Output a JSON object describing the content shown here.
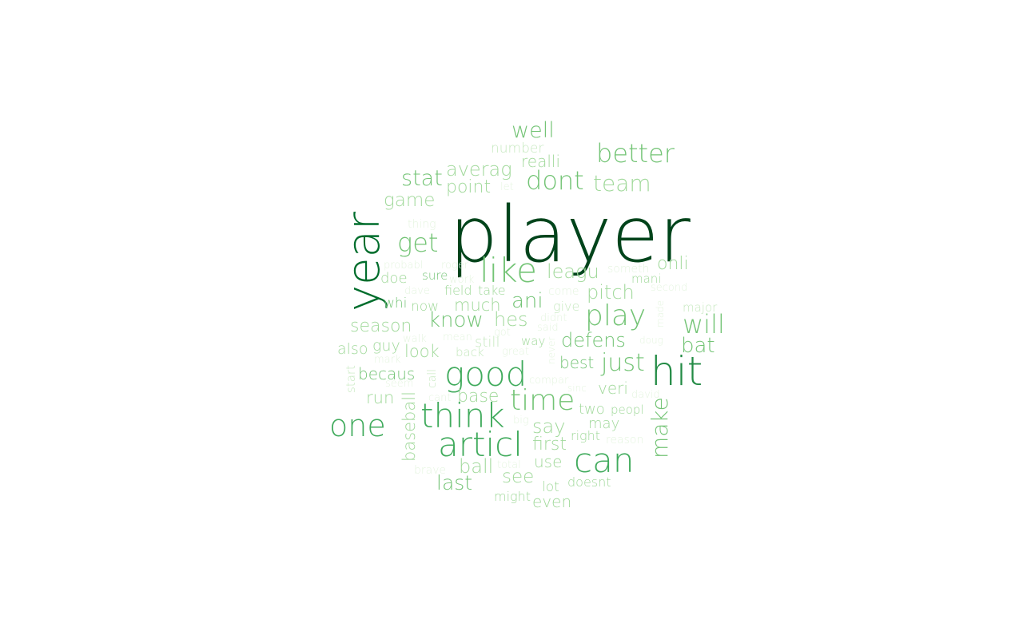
{
  "words": [
    {
      "text": "player",
      "weight": 1.0,
      "color": "#00441b"
    },
    {
      "text": "year",
      "weight": 0.78,
      "color": "#006d2c"
    },
    {
      "text": "hit",
      "weight": 0.66,
      "color": "#238b45"
    },
    {
      "text": "articl",
      "weight": 0.56,
      "color": "#41ab5d"
    },
    {
      "text": "think",
      "weight": 0.55,
      "color": "#41ab5d"
    },
    {
      "text": "good",
      "weight": 0.55,
      "color": "#41ab5d"
    },
    {
      "text": "like",
      "weight": 0.52,
      "color": "#74c476"
    },
    {
      "text": "can",
      "weight": 0.52,
      "color": "#41ab5d"
    },
    {
      "text": "one",
      "weight": 0.48,
      "color": "#41ab5d"
    },
    {
      "text": "time",
      "weight": 0.46,
      "color": "#74c476"
    },
    {
      "text": "play",
      "weight": 0.46,
      "color": "#74c476"
    },
    {
      "text": "dont",
      "weight": 0.42,
      "color": "#74c476"
    },
    {
      "text": "better",
      "weight": 0.4,
      "color": "#74c476"
    },
    {
      "text": "get",
      "weight": 0.4,
      "color": "#74c476"
    },
    {
      "text": "will",
      "weight": 0.4,
      "color": "#74c476"
    },
    {
      "text": "just",
      "weight": 0.38,
      "color": "#74c476"
    },
    {
      "text": "make",
      "weight": 0.36,
      "color": "#74c476"
    },
    {
      "text": "team",
      "weight": 0.36,
      "color": "#a1d99b"
    },
    {
      "text": "well",
      "weight": 0.34,
      "color": "#74c476"
    },
    {
      "text": "stat",
      "weight": 0.34,
      "color": "#74c476"
    },
    {
      "text": "know",
      "weight": 0.32,
      "color": "#74c476"
    },
    {
      "text": "ani",
      "weight": 0.32,
      "color": "#74c476"
    },
    {
      "text": "bat",
      "weight": 0.32,
      "color": "#74c476"
    },
    {
      "text": "last",
      "weight": 0.31,
      "color": "#74c476"
    },
    {
      "text": "ball",
      "weight": 0.31,
      "color": "#a1d99b"
    },
    {
      "text": "say",
      "weight": 0.3,
      "color": "#a1d99b"
    },
    {
      "text": "hes",
      "weight": 0.3,
      "color": "#a1d99b"
    },
    {
      "text": "defens",
      "weight": 0.3,
      "color": "#74c476"
    },
    {
      "text": "pitch",
      "weight": 0.3,
      "color": "#a1d99b"
    },
    {
      "text": "leagu",
      "weight": 0.3,
      "color": "#a1d99b"
    },
    {
      "text": "averag",
      "weight": 0.3,
      "color": "#a1d99b"
    },
    {
      "text": "game",
      "weight": 0.29,
      "color": "#a1d99b"
    },
    {
      "text": "see",
      "weight": 0.29,
      "color": "#a1d99b"
    },
    {
      "text": "first",
      "weight": 0.28,
      "color": "#a1d99b"
    },
    {
      "text": "season",
      "weight": 0.28,
      "color": "#a1d99b"
    },
    {
      "text": "point",
      "weight": 0.28,
      "color": "#a1d99b"
    },
    {
      "text": "onli",
      "weight": 0.28,
      "color": "#a1d99b"
    },
    {
      "text": "base",
      "weight": 0.28,
      "color": "#a1d99b"
    },
    {
      "text": "much",
      "weight": 0.27,
      "color": "#a1d99b"
    },
    {
      "text": "baseball",
      "weight": 0.27,
      "color": "#a1d99b"
    },
    {
      "text": "look",
      "weight": 0.27,
      "color": "#a1d99b"
    },
    {
      "text": "run",
      "weight": 0.27,
      "color": "#a1d99b"
    },
    {
      "text": "becaus",
      "weight": 0.27,
      "color": "#74c476"
    },
    {
      "text": "veri",
      "weight": 0.26,
      "color": "#a1d99b"
    },
    {
      "text": "best",
      "weight": 0.26,
      "color": "#74c476"
    },
    {
      "text": "even",
      "weight": 0.25,
      "color": "#a1d99b"
    },
    {
      "text": "use",
      "weight": 0.25,
      "color": "#a1d99b"
    },
    {
      "text": "realli",
      "weight": 0.25,
      "color": "#a1d99b"
    },
    {
      "text": "also",
      "weight": 0.24,
      "color": "#a1d99b"
    },
    {
      "text": "guy",
      "weight": 0.24,
      "color": "#a1d99b"
    },
    {
      "text": "doe",
      "weight": 0.24,
      "color": "#a1d99b"
    },
    {
      "text": "two",
      "weight": 0.23,
      "color": "#a1d99b"
    },
    {
      "text": "may",
      "weight": 0.23,
      "color": "#a1d99b"
    },
    {
      "text": "still",
      "weight": 0.23,
      "color": "#c7e9c0"
    },
    {
      "text": "now",
      "weight": 0.23,
      "color": "#a1d99b"
    },
    {
      "text": "whi",
      "weight": 0.23,
      "color": "#74c476"
    },
    {
      "text": "lot",
      "weight": 0.22,
      "color": "#a1d99b"
    },
    {
      "text": "number",
      "weight": 0.22,
      "color": "#c7e9c0"
    },
    {
      "text": "doesnt",
      "weight": 0.22,
      "color": "#a1d99b"
    },
    {
      "text": "might",
      "weight": 0.21,
      "color": "#a1d99b"
    },
    {
      "text": "right",
      "weight": 0.21,
      "color": "#a1d99b"
    },
    {
      "text": "give",
      "weight": 0.21,
      "color": "#c7e9c0"
    },
    {
      "text": "take",
      "weight": 0.21,
      "color": "#a1d99b"
    },
    {
      "text": "field",
      "weight": 0.21,
      "color": "#a1d99b"
    },
    {
      "text": "sure",
      "weight": 0.2,
      "color": "#74c476"
    },
    {
      "text": "peopl",
      "weight": 0.2,
      "color": "#a1d99b"
    },
    {
      "text": "mani",
      "weight": 0.2,
      "color": "#a1d99b"
    },
    {
      "text": "major",
      "weight": 0.2,
      "color": "#c7e9c0"
    },
    {
      "text": "back",
      "weight": 0.19,
      "color": "#c7e9c0"
    },
    {
      "text": "way",
      "weight": 0.19,
      "color": "#a1d99b"
    },
    {
      "text": "start",
      "weight": 0.18,
      "color": "#c7e9c0"
    },
    {
      "text": "come",
      "weight": 0.18,
      "color": "#e5f5e0"
    },
    {
      "text": "reason",
      "weight": 0.18,
      "color": "#e5f5e0"
    },
    {
      "text": "thing",
      "weight": 0.18,
      "color": "#e5f5e0"
    },
    {
      "text": "call",
      "weight": 0.18,
      "color": "#c7e9c0"
    },
    {
      "text": "brave",
      "weight": 0.18,
      "color": "#e5f5e0"
    },
    {
      "text": "someth",
      "weight": 0.18,
      "color": "#e5f5e0"
    },
    {
      "text": "second",
      "weight": 0.18,
      "color": "#e5f5e0"
    },
    {
      "text": "total",
      "weight": 0.17,
      "color": "#e5f5e0"
    },
    {
      "text": "compar",
      "weight": 0.17,
      "color": "#e5f5e0"
    },
    {
      "text": "seem",
      "weight": 0.17,
      "color": "#e5f5e0"
    },
    {
      "text": "great",
      "weight": 0.17,
      "color": "#e5f5e0"
    },
    {
      "text": "mean",
      "weight": 0.17,
      "color": "#e5f5e0"
    },
    {
      "text": "david",
      "weight": 0.17,
      "color": "#e5f5e0"
    },
    {
      "text": "didnt",
      "weight": 0.17,
      "color": "#e5f5e0"
    },
    {
      "text": "roger",
      "weight": 0.17,
      "color": "#e5f5e0"
    },
    {
      "text": "let",
      "weight": 0.16,
      "color": "#e5f5e0"
    },
    {
      "text": "probabl",
      "weight": 0.16,
      "color": "#e5f5e0"
    },
    {
      "text": "work",
      "weight": 0.16,
      "color": "#e5f5e0"
    },
    {
      "text": "dave",
      "weight": 0.16,
      "color": "#e5f5e0"
    },
    {
      "text": "walk",
      "weight": 0.16,
      "color": "#e5f5e0"
    },
    {
      "text": "mark",
      "weight": 0.16,
      "color": "#e5f5e0"
    },
    {
      "text": "got",
      "weight": 0.16,
      "color": "#e5f5e0"
    },
    {
      "text": "said",
      "weight": 0.16,
      "color": "#e5f5e0"
    },
    {
      "text": "cant",
      "weight": 0.16,
      "color": "#e5f5e0"
    },
    {
      "text": "big",
      "weight": 0.16,
      "color": "#e5f5e0"
    },
    {
      "text": "sinc",
      "weight": 0.16,
      "color": "#e5f5e0"
    },
    {
      "text": "doug",
      "weight": 0.16,
      "color": "#e5f5e0"
    },
    {
      "text": "made",
      "weight": 0.16,
      "color": "#e5f5e0"
    },
    {
      "text": "never",
      "weight": 0.16,
      "color": "#e5f5e0"
    }
  ]
}
